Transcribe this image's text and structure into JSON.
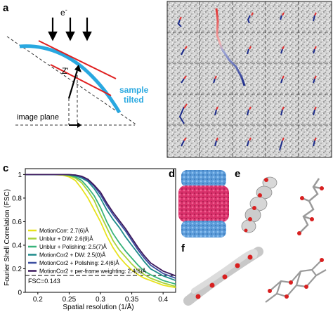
{
  "panels": {
    "a": {
      "letter": "a",
      "electron_label": "e",
      "electron_sup": "-",
      "z_label": "Z'",
      "sample_label_1": "sample",
      "sample_label_2": "tilted",
      "image_plane_label": "image plane",
      "colors": {
        "sample": "#29a8e0",
        "lines": "#e02020",
        "arrows": "#000000"
      }
    },
    "b": {
      "letter": "b",
      "colors": {
        "trace_start": "#e03030",
        "trace_end": "#1a2a8a"
      }
    },
    "c": {
      "letter": "c",
      "fsc_threshold_label": "FSC=0.143",
      "legend": [
        {
          "label": "MotionCorr: 2.7(6)Å",
          "color": "#e8e21c"
        },
        {
          "label": "Unblur + DW: 2.6(9)Å",
          "color": "#a8d23a"
        },
        {
          "label": "Unblur + Polishing: 2.5(7)Å",
          "color": "#38b37a"
        },
        {
          "label": "MotionCor2 + DW: 2.5(0)Å",
          "color": "#1e8b8a"
        },
        {
          "label": "MotionCor2 + Polishing: 2.4(6)Å",
          "color": "#3b4fa0"
        },
        {
          "label": "MotionCor2 + per-frame weighting: 2.4(6)Å",
          "color": "#3d1a5e"
        }
      ]
    },
    "d": {
      "letter": "d",
      "colors": {
        "ends": "#5a9ad8",
        "middle": "#d8306a"
      }
    },
    "e": {
      "letter": "e"
    },
    "f": {
      "letter": "f"
    }
  },
  "chart_data": {
    "type": "line",
    "title": "",
    "xlabel": "Spatial resolution (1/Å)",
    "ylabel": "Fourier Shell Correlation (FSC)",
    "xlim": [
      0.18,
      0.42
    ],
    "ylim": [
      0,
      1.05
    ],
    "xticks": [
      "0.2",
      "0.25",
      "0.3",
      "0.35",
      "0.4"
    ],
    "yticks": [
      "0",
      "0.2",
      "0.4",
      "0.6",
      "0.8",
      "1"
    ],
    "threshold": 0.143,
    "series": [
      {
        "name": "MotionCorr: 2.7(6)Å",
        "x": [
          0.18,
          0.22,
          0.24,
          0.25,
          0.26,
          0.27,
          0.28,
          0.29,
          0.3,
          0.31,
          0.32,
          0.33,
          0.34,
          0.35,
          0.36,
          0.37,
          0.38,
          0.4,
          0.42
        ],
        "y": [
          1.0,
          1.0,
          0.995,
          0.98,
          0.95,
          0.88,
          0.8,
          0.7,
          0.6,
          0.48,
          0.38,
          0.3,
          0.24,
          0.19,
          0.15,
          0.12,
          0.1,
          0.06,
          0.04
        ]
      },
      {
        "name": "Unblur + DW: 2.6(9)Å",
        "x": [
          0.18,
          0.22,
          0.24,
          0.25,
          0.26,
          0.27,
          0.28,
          0.29,
          0.3,
          0.31,
          0.32,
          0.33,
          0.34,
          0.35,
          0.36,
          0.37,
          0.38,
          0.4,
          0.42
        ],
        "y": [
          1.0,
          1.0,
          0.998,
          0.99,
          0.97,
          0.93,
          0.86,
          0.78,
          0.66,
          0.55,
          0.44,
          0.36,
          0.3,
          0.24,
          0.19,
          0.15,
          0.12,
          0.08,
          0.05
        ]
      },
      {
        "name": "Unblur + Polishing: 2.5(7)Å",
        "x": [
          0.18,
          0.22,
          0.24,
          0.25,
          0.26,
          0.27,
          0.28,
          0.29,
          0.3,
          0.31,
          0.32,
          0.33,
          0.34,
          0.35,
          0.36,
          0.37,
          0.38,
          0.4,
          0.42
        ],
        "y": [
          1.0,
          1.0,
          0.999,
          0.995,
          0.98,
          0.95,
          0.89,
          0.82,
          0.72,
          0.6,
          0.5,
          0.42,
          0.35,
          0.29,
          0.23,
          0.18,
          0.15,
          0.1,
          0.07
        ]
      },
      {
        "name": "MotionCor2 + DW: 2.5(0)Å",
        "x": [
          0.18,
          0.22,
          0.24,
          0.25,
          0.26,
          0.27,
          0.28,
          0.29,
          0.3,
          0.31,
          0.32,
          0.33,
          0.34,
          0.35,
          0.36,
          0.37,
          0.38,
          0.4,
          0.42
        ],
        "y": [
          1.0,
          1.0,
          1.0,
          0.998,
          0.99,
          0.97,
          0.94,
          0.88,
          0.8,
          0.7,
          0.62,
          0.55,
          0.47,
          0.4,
          0.33,
          0.26,
          0.2,
          0.14,
          0.1
        ]
      },
      {
        "name": "MotionCor2 + Polishing: 2.4(6)Å",
        "x": [
          0.18,
          0.22,
          0.24,
          0.25,
          0.26,
          0.27,
          0.28,
          0.29,
          0.3,
          0.31,
          0.32,
          0.33,
          0.34,
          0.35,
          0.36,
          0.37,
          0.38,
          0.4,
          0.42
        ],
        "y": [
          1.0,
          1.0,
          1.0,
          0.999,
          0.995,
          0.98,
          0.95,
          0.9,
          0.83,
          0.74,
          0.66,
          0.59,
          0.52,
          0.44,
          0.36,
          0.29,
          0.23,
          0.16,
          0.12
        ]
      },
      {
        "name": "MotionCor2 + per-frame weighting: 2.4(6)Å",
        "x": [
          0.18,
          0.22,
          0.24,
          0.25,
          0.26,
          0.27,
          0.28,
          0.29,
          0.3,
          0.31,
          0.32,
          0.33,
          0.34,
          0.35,
          0.36,
          0.37,
          0.38,
          0.4,
          0.42
        ],
        "y": [
          1.0,
          1.0,
          1.0,
          0.999,
          0.996,
          0.985,
          0.96,
          0.91,
          0.85,
          0.76,
          0.68,
          0.61,
          0.54,
          0.46,
          0.38,
          0.31,
          0.25,
          0.18,
          0.14
        ]
      }
    ]
  }
}
